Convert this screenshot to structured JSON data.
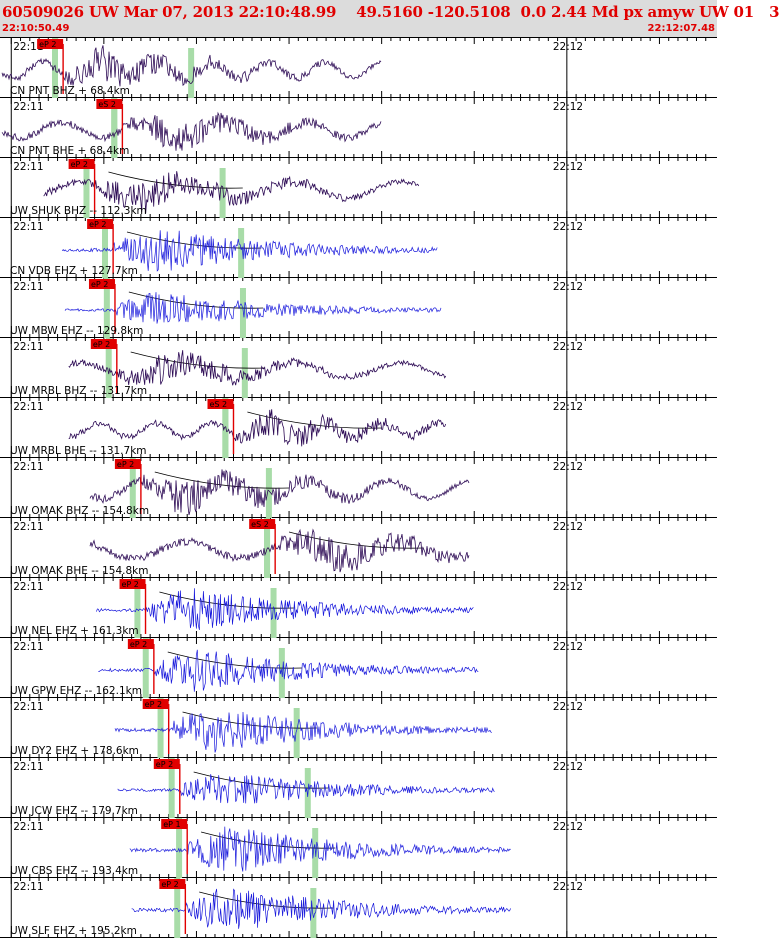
{
  "header": {
    "title": "60509026 UW Mar 07, 2013 22:10:48.99    49.5160 -120.5108  0.0 2.44 Md px amyw UW 01   3",
    "time_start": "22:10:50.49",
    "time_end": "22:12:07.48"
  },
  "colors": {
    "background": "#ffffff",
    "header_bg": "#dcdcdc",
    "header_text": "#e00000",
    "trace_short_period": "#1a1adc",
    "trace_broadband": "#2d0b55",
    "pick_marker": "#e00000",
    "pick_window": "#a8dca8",
    "theory_curve": "#000000"
  },
  "chart_data": {
    "type": "line",
    "x_unit": "time",
    "time_start": "22:10:50.49",
    "time_end": "22:12:07.48",
    "ticks": [
      "22:11",
      "22:12"
    ],
    "traces": [
      {
        "label": "CN PNT BHZ + 68.4km",
        "channel": "BHZ",
        "distance_km": 68.4,
        "pick": "eP 2",
        "pick_s": 6.6,
        "sig_start_s": 0.0,
        "sig_end_s": 41.0,
        "amplitude": 0.38,
        "character": "broadband"
      },
      {
        "label": "CN PNT BHE + 68.4km",
        "channel": "BHE",
        "distance_km": 68.4,
        "pick": "eS 2",
        "pick_s": 13.0,
        "sig_start_s": 0.0,
        "sig_end_s": 41.0,
        "amplitude": 0.36,
        "character": "broadband"
      },
      {
        "label": "UW SHUK BHZ -- 112.3km",
        "channel": "BHZ",
        "distance_km": 112.3,
        "pick": "eP 2",
        "pick_s": 10.0,
        "sig_start_s": 4.5,
        "sig_end_s": 45.0,
        "amplitude": 0.4,
        "character": "broadband"
      },
      {
        "label": "CN VDB EHZ + 127.7km",
        "channel": "EHZ",
        "distance_km": 127.7,
        "pick": "eP 2",
        "pick_s": 12.0,
        "sig_start_s": 6.5,
        "sig_end_s": 47.0,
        "amplitude": 0.4,
        "character": "short-period"
      },
      {
        "label": "UW MBW EHZ -- 129.8km",
        "channel": "EHZ",
        "distance_km": 129.8,
        "pick": "eP 2",
        "pick_s": 12.2,
        "sig_start_s": 6.8,
        "sig_end_s": 47.5,
        "amplitude": 0.32,
        "character": "short-period"
      },
      {
        "label": "UW MRBL BHZ -- 131.7km",
        "channel": "BHZ",
        "distance_km": 131.7,
        "pick": "eP 2",
        "pick_s": 12.4,
        "sig_start_s": 7.2,
        "sig_end_s": 48.0,
        "amplitude": 0.35,
        "character": "broadband"
      },
      {
        "label": "UW MRBL BHE -- 131.7km",
        "channel": "BHE",
        "distance_km": 131.7,
        "pick": "eS 2",
        "pick_s": 25.0,
        "sig_start_s": 7.2,
        "sig_end_s": 48.0,
        "amplitude": 0.32,
        "character": "broadband"
      },
      {
        "label": "UW OMAK BHZ -- 154.8km",
        "channel": "BHZ",
        "distance_km": 154.8,
        "pick": "eP 2",
        "pick_s": 15.0,
        "sig_start_s": 9.5,
        "sig_end_s": 50.5,
        "amplitude": 0.42,
        "character": "broadband"
      },
      {
        "label": "UW OMAK BHE -- 154.8km",
        "channel": "BHE",
        "distance_km": 154.8,
        "pick": "eS 2",
        "pick_s": 29.5,
        "sig_start_s": 9.5,
        "sig_end_s": 50.5,
        "amplitude": 0.4,
        "character": "broadband"
      },
      {
        "label": "UW NEL EHZ + 161.3km",
        "channel": "EHZ",
        "distance_km": 161.3,
        "pick": "eP 2",
        "pick_s": 15.5,
        "sig_start_s": 10.2,
        "sig_end_s": 51.0,
        "amplitude": 0.4,
        "character": "short-period"
      },
      {
        "label": "UW GPW EHZ -- 162.1km",
        "channel": "EHZ",
        "distance_km": 162.1,
        "pick": "eP 2",
        "pick_s": 16.4,
        "sig_start_s": 10.4,
        "sig_end_s": 51.5,
        "amplitude": 0.38,
        "character": "short-period"
      },
      {
        "label": "UW DY2 EHZ + 178.6km",
        "channel": "EHZ",
        "distance_km": 178.6,
        "pick": "eP 2",
        "pick_s": 18.0,
        "sig_start_s": 12.2,
        "sig_end_s": 53.0,
        "amplitude": 0.4,
        "character": "short-period"
      },
      {
        "label": "UW JCW EHZ -- 179.7km",
        "channel": "EHZ",
        "distance_km": 179.7,
        "pick": "eP 2",
        "pick_s": 19.2,
        "sig_start_s": 12.5,
        "sig_end_s": 53.3,
        "amplitude": 0.32,
        "character": "short-period"
      },
      {
        "label": "UW CBS EHZ -- 193.4km",
        "channel": "EHZ",
        "distance_km": 193.4,
        "pick": "eP 1",
        "pick_s": 20.0,
        "sig_start_s": 13.8,
        "sig_end_s": 55.0,
        "amplitude": 0.42,
        "character": "short-period"
      },
      {
        "label": "UW SLF EHZ + 195.2km",
        "channel": "EHZ",
        "distance_km": 195.2,
        "pick": "eP 2",
        "pick_s": 19.8,
        "sig_start_s": 14.0,
        "sig_end_s": 55.0,
        "amplitude": 0.42,
        "character": "short-period"
      }
    ]
  }
}
